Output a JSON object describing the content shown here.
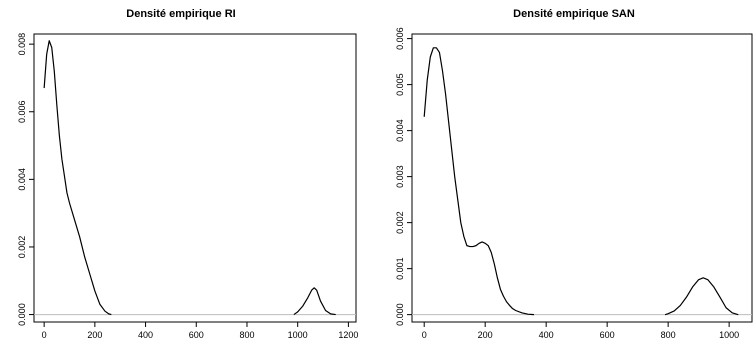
{
  "chart_data": [
    {
      "type": "line",
      "title": "Densité empirique RI",
      "xlabel": "",
      "ylabel": "",
      "xlim": [
        -40,
        1230
      ],
      "ylim": [
        -0.00022,
        0.0083
      ],
      "xticks": [
        0,
        200,
        400,
        600,
        800,
        1000,
        1200
      ],
      "yticks": [
        0.0,
        0.002,
        0.004,
        0.006,
        0.008
      ],
      "ytick_labels": [
        "0.000",
        "0.002",
        "0.004",
        "0.006",
        "0.008"
      ],
      "baseline_y": 0,
      "grid": false,
      "series": [
        {
          "x": [
            0,
            10,
            20,
            30,
            40,
            50,
            60,
            70,
            80,
            90,
            100,
            120,
            140,
            160,
            180,
            200,
            220,
            240,
            255,
            265,
            985,
            1000,
            1020,
            1040,
            1055,
            1065,
            1075,
            1090,
            1110,
            1130,
            1150
          ],
          "y": [
            0.0067,
            0.0077,
            0.0081,
            0.0079,
            0.0072,
            0.0062,
            0.0053,
            0.0046,
            0.0041,
            0.0036,
            0.0033,
            0.0028,
            0.0023,
            0.0017,
            0.0012,
            0.0007,
            0.0003,
            0.0001,
            2e-05,
            0.0,
            0.0,
            8e-05,
            0.00025,
            0.0005,
            0.00072,
            0.00079,
            0.00072,
            0.0004,
            0.00012,
            2e-05,
            0.0
          ]
        }
      ]
    },
    {
      "type": "line",
      "title": "Densité empirique SAN",
      "xlabel": "",
      "ylabel": "",
      "xlim": [
        -40,
        1075
      ],
      "ylim": [
        -0.00016,
        0.0061
      ],
      "xticks": [
        0,
        200,
        400,
        600,
        800,
        1000
      ],
      "yticks": [
        0.0,
        0.001,
        0.002,
        0.003,
        0.004,
        0.005,
        0.006
      ],
      "ytick_labels": [
        "0.000",
        "0.001",
        "0.002",
        "0.003",
        "0.004",
        "0.005",
        "0.006"
      ],
      "baseline_y": 0,
      "grid": false,
      "series": [
        {
          "x": [
            0,
            10,
            20,
            30,
            40,
            50,
            60,
            70,
            80,
            90,
            100,
            110,
            120,
            130,
            140,
            150,
            160,
            170,
            180,
            190,
            200,
            210,
            220,
            230,
            240,
            250,
            260,
            270,
            280,
            290,
            300,
            320,
            340,
            360,
            790,
            800,
            820,
            840,
            860,
            880,
            900,
            915,
            930,
            950,
            970,
            990,
            1010,
            1030
          ],
          "y": [
            0.0043,
            0.0051,
            0.0056,
            0.0058,
            0.0058,
            0.0057,
            0.0053,
            0.0048,
            0.0042,
            0.0036,
            0.003,
            0.0025,
            0.002,
            0.0017,
            0.0015,
            0.00148,
            0.00148,
            0.0015,
            0.00155,
            0.00158,
            0.00155,
            0.0015,
            0.00135,
            0.0011,
            0.0008,
            0.00055,
            0.0004,
            0.00028,
            0.0002,
            0.00013,
            9e-05,
            4e-05,
            1e-05,
            0.0,
            0.0,
            2e-05,
            8e-05,
            0.0002,
            0.00038,
            0.0006,
            0.00076,
            0.0008,
            0.00076,
            0.0006,
            0.00038,
            0.00015,
            4e-05,
            0.0
          ]
        }
      ]
    }
  ]
}
